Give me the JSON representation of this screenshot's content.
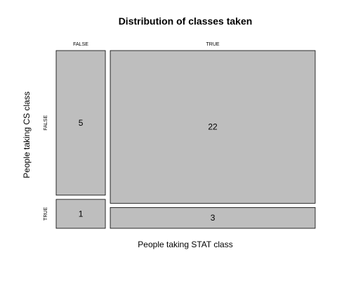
{
  "chart_data": {
    "type": "mosaic",
    "title": "Distribution of classes taken",
    "xlabel": "People taking STAT class",
    "ylabel": "People taking CS class",
    "x_levels": [
      "FALSE",
      "TRUE"
    ],
    "y_levels": [
      "FALSE",
      "TRUE"
    ],
    "counts": [
      [
        5,
        1
      ],
      [
        22,
        3
      ]
    ],
    "fill_color": "#bebebe",
    "border_color": "#000000"
  }
}
